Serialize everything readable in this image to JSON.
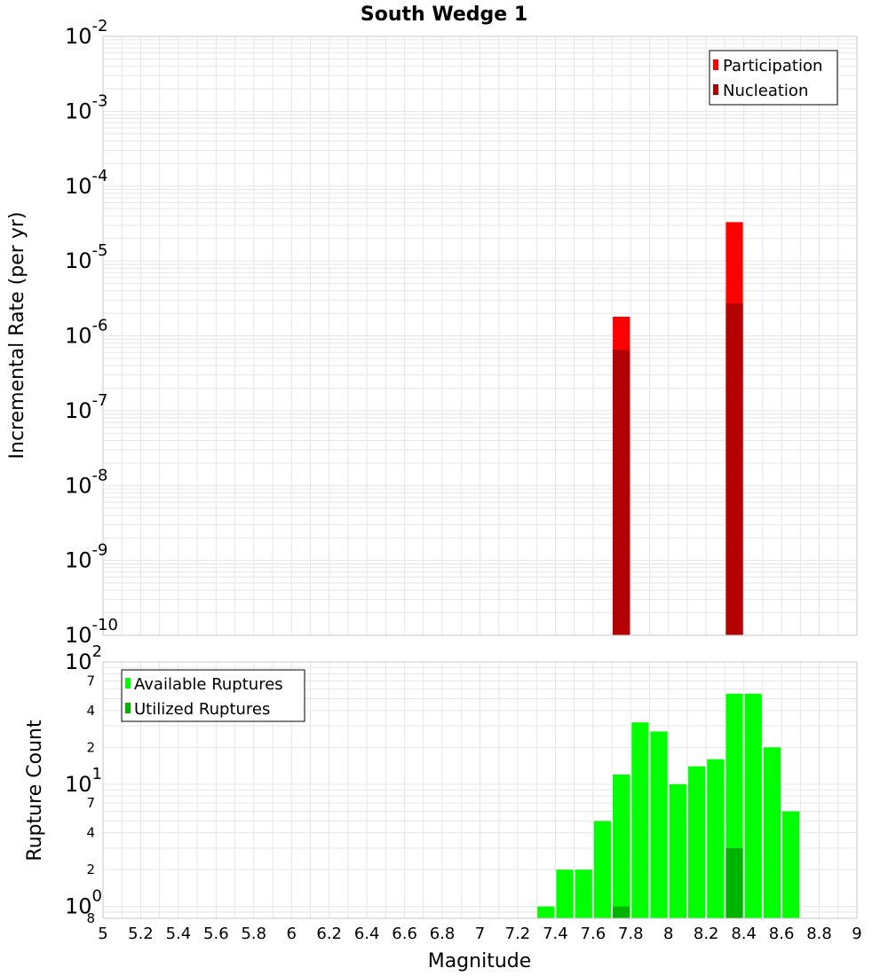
{
  "chart_data": [
    {
      "type": "bar",
      "title": "South Wedge 1",
      "xlabel": "",
      "ylabel": "Incremental Rate (per yr)",
      "yscale": "log",
      "ylim": [
        1e-10,
        0.01
      ],
      "xlim": [
        5,
        9
      ],
      "grid": true,
      "legend_position": "top-right",
      "bar_width": 0.1,
      "y_major_ticks": [
        {
          "value": 1e-10,
          "base": "10",
          "exp": "-10"
        },
        {
          "value": 1e-09,
          "base": "10",
          "exp": "-9"
        },
        {
          "value": 1e-08,
          "base": "10",
          "exp": "-8"
        },
        {
          "value": 1e-07,
          "base": "10",
          "exp": "-7"
        },
        {
          "value": 1e-06,
          "base": "10",
          "exp": "-6"
        },
        {
          "value": 1e-05,
          "base": "10",
          "exp": "-5"
        },
        {
          "value": 0.0001,
          "base": "10",
          "exp": "-4"
        },
        {
          "value": 0.001,
          "base": "10",
          "exp": "-3"
        },
        {
          "value": 0.01,
          "base": "10",
          "exp": "-2"
        }
      ],
      "series": [
        {
          "name": "Participation",
          "color": "#ff0000",
          "points": [
            {
              "x": 7.75,
              "y": 1.8e-06
            },
            {
              "x": 8.35,
              "y": 3.3e-05
            }
          ]
        },
        {
          "name": "Nucleation",
          "color": "#b30000",
          "points": [
            {
              "x": 7.75,
              "y": 6.5e-07
            },
            {
              "x": 8.35,
              "y": 2.7e-06
            }
          ]
        }
      ]
    },
    {
      "type": "bar",
      "title": "",
      "xlabel": "Magnitude",
      "ylabel": "Rupture Count",
      "yscale": "log",
      "ylim": [
        0.8,
        100
      ],
      "xlim": [
        5,
        9
      ],
      "grid": true,
      "legend_position": "top-left",
      "bar_width": 0.1,
      "x_ticks": [
        "5",
        "5.2",
        "5.4",
        "5.6",
        "5.8",
        "6",
        "6.2",
        "6.4",
        "6.6",
        "6.8",
        "7",
        "7.2",
        "7.4",
        "7.6",
        "7.8",
        "8",
        "8.2",
        "8.4",
        "8.6",
        "8.8",
        "9"
      ],
      "y_major_ticks": [
        {
          "value": 1,
          "base": "10",
          "exp": "0"
        },
        {
          "value": 10,
          "base": "10",
          "exp": "1"
        },
        {
          "value": 100,
          "base": "10",
          "exp": "2"
        }
      ],
      "y_minor_ticks": [
        {
          "value": 0.8,
          "label": "8"
        },
        {
          "value": 2,
          "label": "2"
        },
        {
          "value": 4,
          "label": "4"
        },
        {
          "value": 7,
          "label": "7"
        },
        {
          "value": 20,
          "label": "2"
        },
        {
          "value": 40,
          "label": "4"
        },
        {
          "value": 70,
          "label": "7"
        }
      ],
      "series": [
        {
          "name": "Available Ruptures",
          "color": "#00ff00",
          "points": [
            {
              "x": 7.35,
              "y": 1
            },
            {
              "x": 7.45,
              "y": 2
            },
            {
              "x": 7.55,
              "y": 2
            },
            {
              "x": 7.65,
              "y": 5
            },
            {
              "x": 7.75,
              "y": 12
            },
            {
              "x": 7.85,
              "y": 32
            },
            {
              "x": 7.95,
              "y": 27
            },
            {
              "x": 8.05,
              "y": 10
            },
            {
              "x": 8.15,
              "y": 14
            },
            {
              "x": 8.25,
              "y": 16
            },
            {
              "x": 8.35,
              "y": 55
            },
            {
              "x": 8.45,
              "y": 55
            },
            {
              "x": 8.55,
              "y": 20
            },
            {
              "x": 8.65,
              "y": 6
            }
          ]
        },
        {
          "name": "Utilized Ruptures",
          "color": "#00b300",
          "points": [
            {
              "x": 7.75,
              "y": 1
            },
            {
              "x": 8.35,
              "y": 3
            }
          ]
        }
      ]
    }
  ]
}
